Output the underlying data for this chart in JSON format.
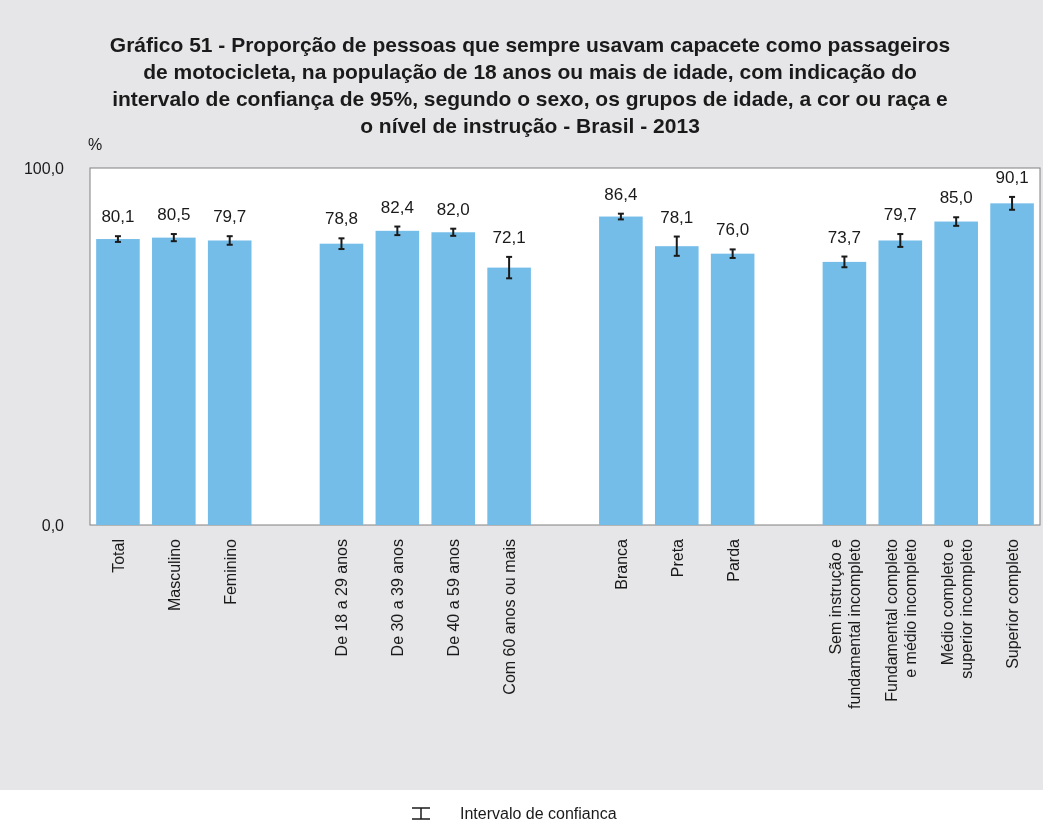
{
  "chart_data": {
    "type": "bar",
    "title": "Gráfico 51 - Proporção de pessoas que sempre usavam capacete como passageiros\nde motocicleta, na população de 18 anos ou mais de idade, com indicação do\nintervalo de confiança de 95%, segundo o sexo, os grupos de idade, a cor ou raça e\no nível de instrução - Brasil - 2013",
    "ylabel": "%",
    "categories": [
      "Total",
      "Masculino",
      "Feminino",
      null,
      "De 18 a 29 anos",
      "De 30 a 39 anos",
      "De 40 a 59 anos",
      "Com 60 anos ou mais",
      null,
      "Branca",
      "Preta",
      "Parda",
      null,
      "Sem instrução e\nfundamental incompleto",
      "Fundamental completo\ne médio incompleto",
      "Médio completo e\nsuperior incompleto",
      "Superior completo"
    ],
    "values": [
      80.1,
      80.5,
      79.7,
      null,
      78.8,
      82.4,
      82.0,
      72.1,
      null,
      86.4,
      78.1,
      76.0,
      null,
      73.7,
      79.7,
      85.0,
      90.1
    ],
    "errors": [
      0.8,
      1.0,
      1.2,
      null,
      1.5,
      1.2,
      1.0,
      3.0,
      null,
      0.8,
      2.7,
      1.2,
      null,
      1.5,
      1.8,
      1.2,
      1.8
    ],
    "value_labels": [
      "80,1",
      "80,5",
      "79,7",
      null,
      "78,8",
      "82,4",
      "82,0",
      "72,1",
      null,
      "86,4",
      "78,1",
      "76,0",
      null,
      "73,7",
      "79,7",
      "85,0",
      "90,1"
    ],
    "color": "#74bde8",
    "ylim": [
      0,
      100
    ],
    "yticks": [
      {
        "value": 0,
        "label": "0,0"
      },
      {
        "value": 100,
        "label": "100,0"
      }
    ],
    "grid": false,
    "annotations": [
      "Intervalo de confianca"
    ]
  }
}
